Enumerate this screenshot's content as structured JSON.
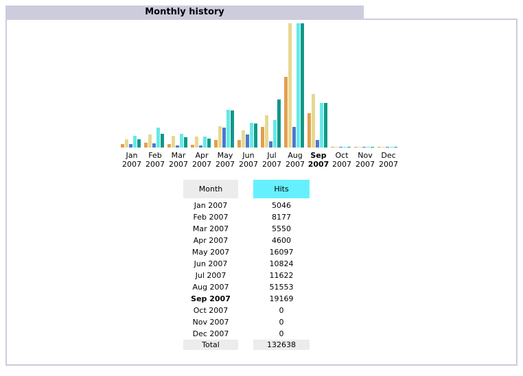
{
  "page": {
    "title": "Monthly history"
  },
  "table": {
    "headers": {
      "month": "Month",
      "hits": "Hits"
    },
    "rows": [
      {
        "month": "Jan 2007",
        "hits": "5046"
      },
      {
        "month": "Feb 2007",
        "hits": "8177"
      },
      {
        "month": "Mar 2007",
        "hits": "5550"
      },
      {
        "month": "Apr 2007",
        "hits": "4600"
      },
      {
        "month": "May 2007",
        "hits": "16097"
      },
      {
        "month": "Jun 2007",
        "hits": "10824"
      },
      {
        "month": "Jul 2007",
        "hits": "11622"
      },
      {
        "month": "Aug 2007",
        "hits": "51553"
      },
      {
        "month": "Sep 2007",
        "hits": "19169"
      },
      {
        "month": "Oct 2007",
        "hits": "0"
      },
      {
        "month": "Nov 2007",
        "hits": "0"
      },
      {
        "month": "Dec 2007",
        "hits": "0"
      }
    ],
    "total": {
      "label": "Total",
      "hits": "132638"
    }
  },
  "chart_data": {
    "type": "bar",
    "categories": [
      "Jan 2007",
      "Feb 2007",
      "Mar 2007",
      "Apr 2007",
      "May 2007",
      "Jun 2007",
      "Jul 2007",
      "Aug 2007",
      "Sep 2007",
      "Oct 2007",
      "Nov 2007",
      "Dec 2007"
    ],
    "month_labels": [
      "Jan",
      "Feb",
      "Mar",
      "Apr",
      "May",
      "Jun",
      "Jul",
      "Aug",
      "Sep",
      "Oct",
      "Nov",
      "Dec"
    ],
    "year_label": "2007",
    "current_month_index": 8,
    "series": [
      {
        "values": [
          5,
          7,
          5,
          4,
          12,
          12,
          31,
          108,
          53,
          0,
          0,
          0
        ],
        "color": "#e0a050"
      },
      {
        "values": [
          13,
          20,
          18,
          17,
          33,
          26,
          49,
          190,
          82,
          0,
          0,
          0
        ],
        "color": "#e8d890"
      },
      {
        "values": [
          5,
          6,
          3,
          3,
          30,
          20,
          9,
          31,
          12,
          0,
          0,
          0
        ],
        "color": "#4a78d0"
      },
      {
        "values": [
          18,
          30,
          21,
          17,
          58,
          38,
          42,
          190,
          68,
          0,
          0,
          0
        ],
        "color": "#66e8e8"
      },
      {
        "values": [
          13,
          21,
          16,
          14,
          57,
          37,
          74,
          190,
          68,
          0,
          0,
          0
        ],
        "color": "#109888"
      }
    ],
    "ylim": [
      0,
      190
    ],
    "grid": false
  }
}
